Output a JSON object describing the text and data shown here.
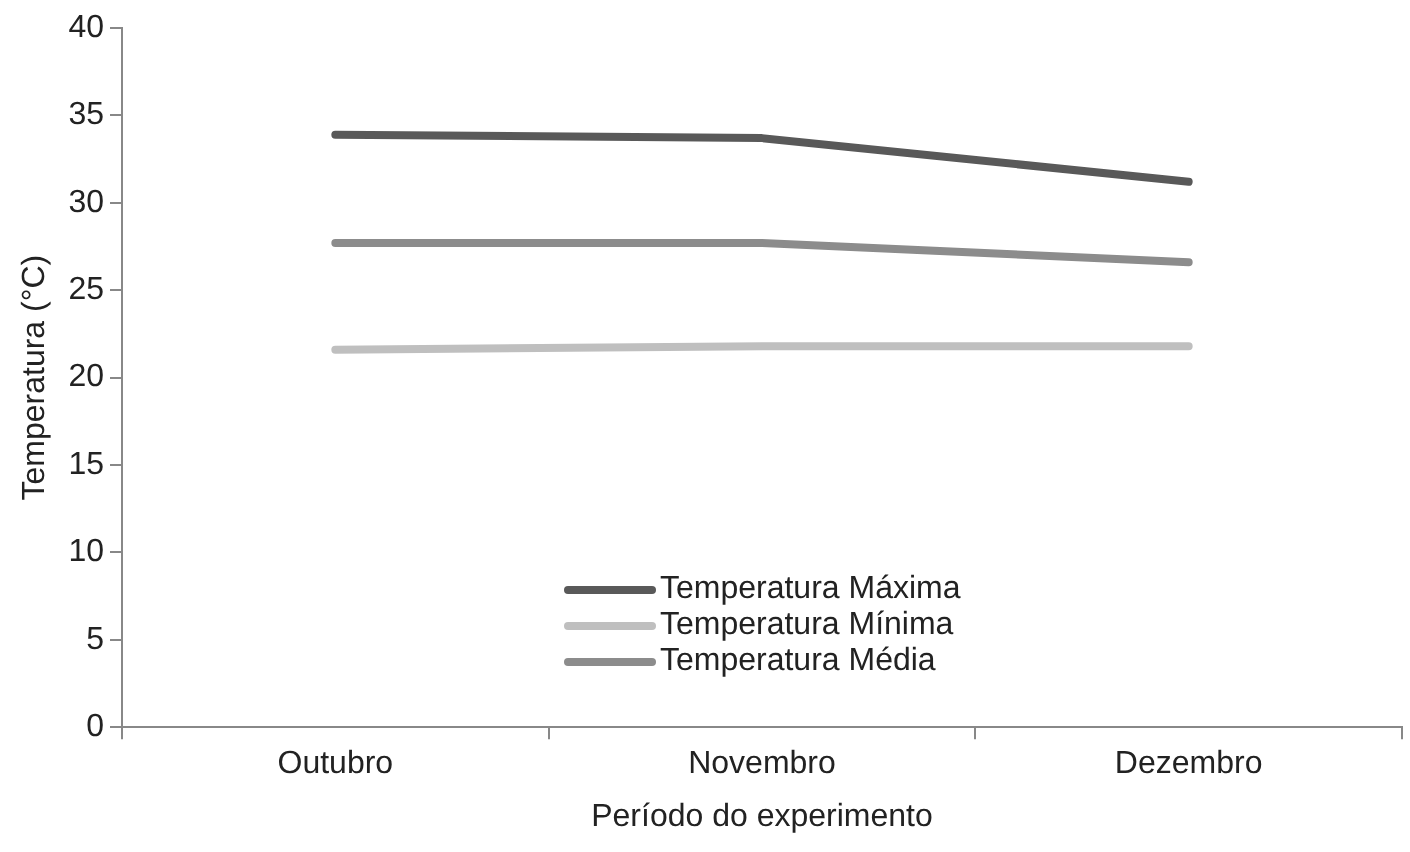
{
  "chart_data": {
    "type": "line",
    "xlabel": "Período do experimento",
    "ylabel": "Temperatura (°C)",
    "categories": [
      "Outubro",
      "Novembro",
      "Dezembro"
    ],
    "series": [
      {
        "name": "Temperatura Máxima",
        "color": "#595959",
        "values": [
          33.9,
          33.7,
          31.2
        ]
      },
      {
        "name": "Temperatura Mínima",
        "color": "#bfbfbf",
        "values": [
          21.6,
          21.8,
          21.8
        ]
      },
      {
        "name": "Temperatura Média",
        "color": "#8c8c8c",
        "values": [
          27.7,
          27.7,
          26.6
        ]
      }
    ],
    "ylim": [
      0,
      40
    ],
    "yticks": [
      0,
      5,
      10,
      15,
      20,
      25,
      30,
      35,
      40
    ],
    "grid": false,
    "legend": "bottom",
    "marker": "none",
    "line_style": "solid"
  }
}
